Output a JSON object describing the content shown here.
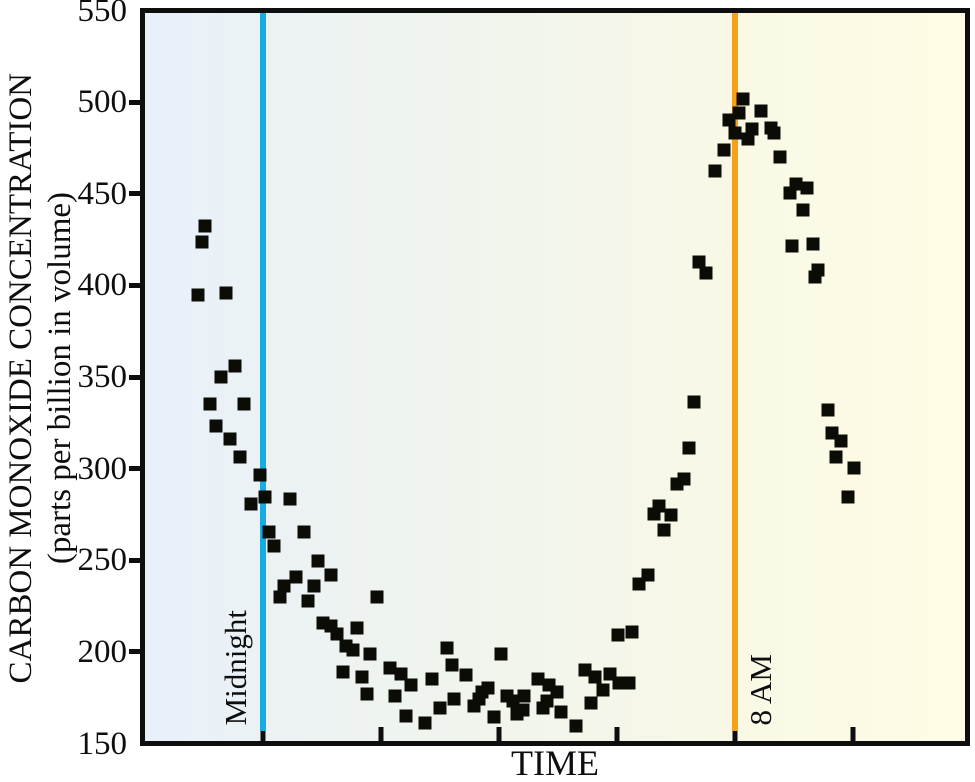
{
  "figure": {
    "y_title_line1": "CARBON MONOXIDE CONCENTRATION",
    "y_title_line2": "(parts per billion in volume)",
    "x_title": "TIME"
  },
  "colors": {
    "midnight_line": "#15ade4",
    "eight_am_line": "#f5a11c",
    "points": "#0c0c07",
    "axis": "#0e0e0e",
    "background_left": "#e8f0fa",
    "background_right": "#fefce4"
  },
  "chart_data": {
    "type": "scatter",
    "title": "",
    "xlabel": "TIME",
    "ylabel": "CARBON MONOXIDE CONCENTRATION (parts per billion in volume)",
    "x_unit": "hours relative to midnight",
    "xlim": [
      -2.0,
      11.9
    ],
    "ylim": [
      150,
      550
    ],
    "y_ticks": [
      150,
      200,
      250,
      300,
      350,
      400,
      450,
      500,
      550
    ],
    "x_tick_hours": [
      0,
      2,
      4,
      6,
      8,
      10
    ],
    "grid": false,
    "marker": "square",
    "reference_lines": [
      {
        "label": "Midnight",
        "hour": 0,
        "color": "#15ade4",
        "label_side": "left"
      },
      {
        "label": "8 AM",
        "hour": 8,
        "color": "#f5a11c",
        "label_side": "right"
      }
    ],
    "points": [
      [
        -1.11,
        395
      ],
      [
        -1.04,
        424
      ],
      [
        -0.98,
        433
      ],
      [
        -0.89,
        335
      ],
      [
        -0.79,
        323
      ],
      [
        -0.72,
        350
      ],
      [
        -0.62,
        396
      ],
      [
        -0.56,
        316
      ],
      [
        -0.47,
        356
      ],
      [
        -0.39,
        306
      ],
      [
        -0.32,
        335
      ],
      [
        -0.2,
        280
      ],
      [
        -0.05,
        296
      ],
      [
        0.03,
        284
      ],
      [
        0.1,
        265
      ],
      [
        0.19,
        257
      ],
      [
        0.29,
        229
      ],
      [
        0.35,
        235
      ],
      [
        0.45,
        283
      ],
      [
        0.56,
        240
      ],
      [
        0.69,
        265
      ],
      [
        0.76,
        227
      ],
      [
        0.86,
        235
      ],
      [
        0.93,
        249
      ],
      [
        1.01,
        215
      ],
      [
        1.15,
        213
      ],
      [
        1.16,
        241
      ],
      [
        1.25,
        209
      ],
      [
        1.35,
        188
      ],
      [
        1.4,
        202
      ],
      [
        1.53,
        200
      ],
      [
        1.6,
        212
      ],
      [
        1.68,
        185
      ],
      [
        1.77,
        176
      ],
      [
        1.82,
        198
      ],
      [
        1.94,
        229
      ],
      [
        2.16,
        190
      ],
      [
        2.24,
        175
      ],
      [
        2.34,
        187
      ],
      [
        2.42,
        164
      ],
      [
        2.51,
        181
      ],
      [
        2.74,
        160
      ],
      [
        2.86,
        184
      ],
      [
        3.0,
        168
      ],
      [
        3.12,
        201
      ],
      [
        3.2,
        192
      ],
      [
        3.23,
        173
      ],
      [
        3.44,
        186
      ],
      [
        3.57,
        169
      ],
      [
        3.67,
        173
      ],
      [
        3.72,
        177
      ],
      [
        3.82,
        179
      ],
      [
        3.91,
        163
      ],
      [
        4.04,
        198
      ],
      [
        4.13,
        175
      ],
      [
        4.23,
        172
      ],
      [
        4.31,
        165
      ],
      [
        4.41,
        167
      ],
      [
        4.43,
        175
      ],
      [
        4.67,
        184
      ],
      [
        4.75,
        168
      ],
      [
        4.82,
        172
      ],
      [
        4.85,
        181
      ],
      [
        4.99,
        177
      ],
      [
        5.05,
        166
      ],
      [
        5.31,
        158
      ],
      [
        5.46,
        189
      ],
      [
        5.56,
        171
      ],
      [
        5.62,
        185
      ],
      [
        5.76,
        178
      ],
      [
        5.89,
        187
      ],
      [
        6.01,
        208
      ],
      [
        6.03,
        182
      ],
      [
        6.2,
        182
      ],
      [
        6.25,
        210
      ],
      [
        6.38,
        236
      ],
      [
        6.53,
        241
      ],
      [
        6.62,
        275
      ],
      [
        6.72,
        279
      ],
      [
        6.8,
        266
      ],
      [
        6.92,
        274
      ],
      [
        7.02,
        291
      ],
      [
        7.14,
        294
      ],
      [
        7.22,
        311
      ],
      [
        7.31,
        336
      ],
      [
        7.39,
        413
      ],
      [
        7.51,
        407
      ],
      [
        7.66,
        463
      ],
      [
        7.81,
        475
      ],
      [
        7.9,
        491
      ],
      [
        8.0,
        484
      ],
      [
        8.07,
        495
      ],
      [
        8.13,
        503
      ],
      [
        8.22,
        481
      ],
      [
        8.29,
        486
      ],
      [
        8.44,
        496
      ],
      [
        8.61,
        487
      ],
      [
        8.67,
        484
      ],
      [
        8.77,
        471
      ],
      [
        8.93,
        451
      ],
      [
        8.96,
        422
      ],
      [
        9.04,
        456
      ],
      [
        9.16,
        442
      ],
      [
        9.23,
        454
      ],
      [
        9.33,
        423
      ],
      [
        9.36,
        405
      ],
      [
        9.41,
        409
      ],
      [
        9.57,
        332
      ],
      [
        9.65,
        319
      ],
      [
        9.72,
        306
      ],
      [
        9.8,
        315
      ],
      [
        9.92,
        284
      ],
      [
        10.02,
        300
      ]
    ]
  }
}
